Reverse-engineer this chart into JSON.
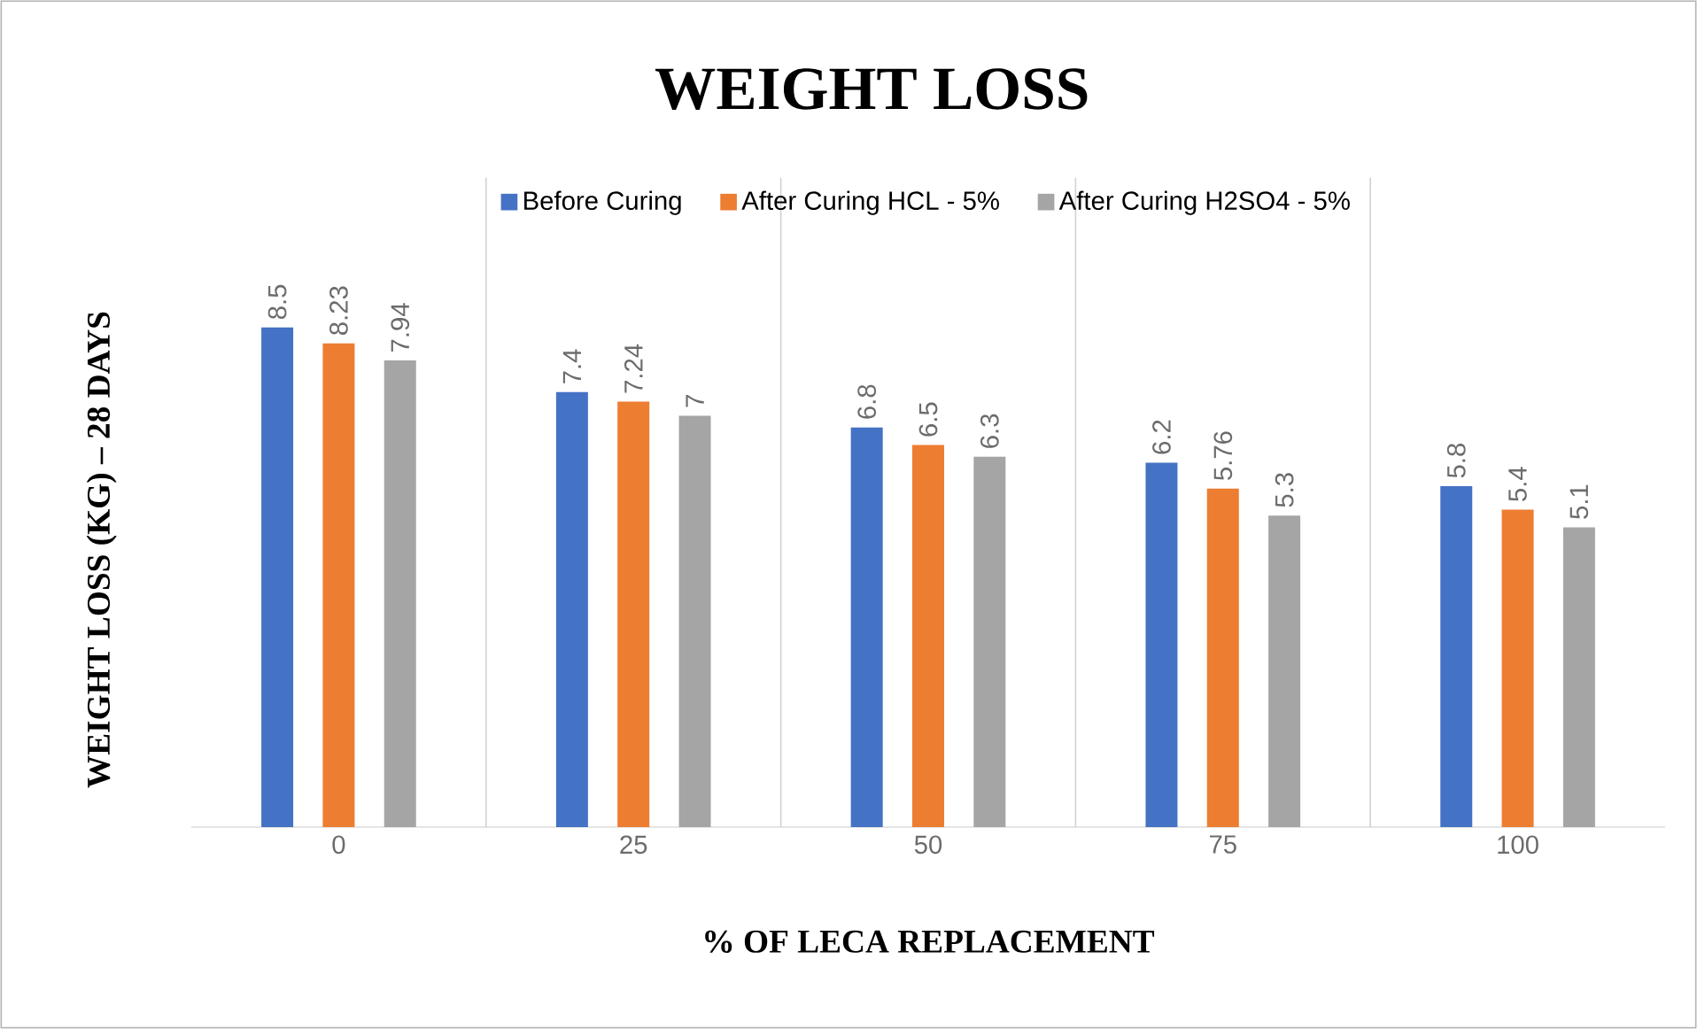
{
  "chart_data": {
    "type": "bar",
    "title": "WEIGHT  LOSS",
    "xlabel": "% OF LECA REPLACEMENT",
    "ylabel": "WEIGHT LOSS (KG) – 28 DAYS",
    "categories": [
      "0",
      "25",
      "50",
      "75",
      "100"
    ],
    "series": [
      {
        "name": "Before Curing",
        "color": "#4472c4",
        "values": [
          8.5,
          7.4,
          6.8,
          6.2,
          5.8
        ]
      },
      {
        "name": "After Curing HCL - 5%",
        "color": "#ed7d31",
        "values": [
          8.23,
          7.24,
          6.5,
          5.76,
          5.4
        ]
      },
      {
        "name": "After Curing H2SO4 - 5%",
        "color": "#a5a5a5",
        "values": [
          7.94,
          7,
          6.3,
          5.3,
          5.1
        ]
      }
    ],
    "data_labels": true,
    "grid": "x",
    "legend": "top"
  }
}
